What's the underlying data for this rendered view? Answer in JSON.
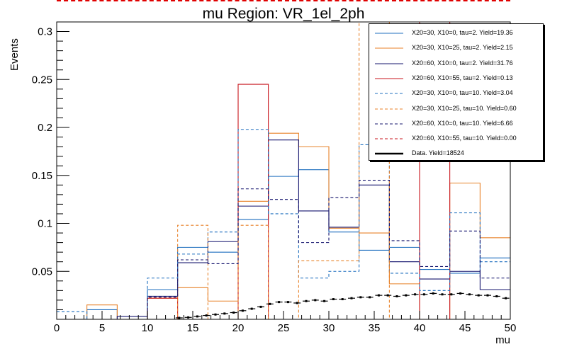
{
  "chart_data": {
    "type": "histogram",
    "title": "mu Region: VR_1el_2ph",
    "xlabel": "mu",
    "ylabel": "Events",
    "xlim": [
      0,
      50
    ],
    "ylim": [
      0,
      0.31
    ],
    "x_ticks": [
      0,
      5,
      10,
      15,
      20,
      25,
      30,
      35,
      40,
      45,
      50
    ],
    "y_ticks": [
      0.05,
      0.1,
      0.15,
      0.2,
      0.25,
      0.3
    ],
    "bin_edges": [
      0,
      3.33,
      6.67,
      10,
      13.33,
      16.67,
      20,
      23.33,
      26.67,
      30,
      33.33,
      36.67,
      40,
      43.33,
      46.67,
      50
    ],
    "legend_position": "top-right",
    "series": [
      {
        "name": "X20=30, X10=0, tau=2. Yield=19.36",
        "color": "#1f6fbf",
        "style": "solid",
        "values": [
          0.0,
          0.01,
          0.0,
          0.031,
          0.075,
          0.07,
          0.104,
          0.149,
          0.156,
          0.091,
          0.072,
          0.075,
          0.052,
          0.048,
          0.064
        ]
      },
      {
        "name": "X20=30, X10=25, tau=2. Yield=2.15",
        "color": "#e8822a",
        "style": "solid",
        "values": [
          0.0,
          0.015,
          0.0,
          0.022,
          0.033,
          0.019,
          0.123,
          0.194,
          0.18,
          0.095,
          0.09,
          0.037,
          0.0,
          0.142,
          0.085
        ]
      },
      {
        "name": "X20=60, X10=0, tau=2. Yield=31.76",
        "color": "#14146e",
        "style": "solid",
        "values": [
          0.0,
          0.0,
          0.003,
          0.024,
          0.059,
          0.081,
          0.118,
          0.187,
          0.113,
          0.096,
          0.14,
          0.06,
          0.042,
          0.05,
          0.031
        ]
      },
      {
        "name": "X20=60, X10=55, tau=2. Yield=0.13",
        "color": "#c8161d",
        "style": "solid",
        "values": [
          0.0,
          0.0,
          0.0,
          0.022,
          0.0,
          0.0,
          0.245,
          0.0,
          0.0,
          0.0,
          0.0,
          0.0,
          0.31,
          0.0,
          0.0
        ]
      },
      {
        "name": "X20=30, X10=0, tau=10. Yield=3.04",
        "color": "#1f6fbf",
        "style": "dashed",
        "values": [
          0.008,
          0.0,
          0.0,
          0.043,
          0.068,
          0.091,
          0.198,
          0.11,
          0.043,
          0.05,
          0.182,
          0.048,
          0.03,
          0.111,
          0.06
        ]
      },
      {
        "name": "X20=30, X10=25, tau=10. Yield=0.60",
        "color": "#e8822a",
        "style": "dashed",
        "values": [
          0.0,
          0.0,
          0.0,
          0.0,
          0.098,
          0.0,
          0.098,
          0.0,
          0.061,
          0.061,
          0.31,
          0.0,
          0.0,
          0.0,
          0.0
        ]
      },
      {
        "name": "X20=60, X10=0, tau=10. Yield=6.66",
        "color": "#14146e",
        "style": "dashed",
        "values": [
          0.0,
          0.0,
          0.0,
          0.023,
          0.062,
          0.058,
          0.136,
          0.125,
          0.08,
          0.127,
          0.145,
          0.082,
          0.055,
          0.092,
          0.043
        ]
      },
      {
        "name": "X20=60, X10=55, tau=10. Yield=0.00",
        "color": "#c8161d",
        "style": "dashed",
        "values": [
          0.0,
          0.0,
          0.0,
          0.0,
          0.0,
          0.0,
          0.0,
          0.0,
          0.0,
          0.0,
          0.0,
          0.0,
          0.0,
          0.0,
          0.0
        ]
      }
    ],
    "data_points": {
      "name": "Data. Yield=18524",
      "color": "#000000",
      "x": [
        13.5,
        14.5,
        15.5,
        16.5,
        17.5,
        18.5,
        19.5,
        20.5,
        21.5,
        22.5,
        23.5,
        24.5,
        25.5,
        26.5,
        27.5,
        28.5,
        29.5,
        30.5,
        31.5,
        32.5,
        33.5,
        34.5,
        35.5,
        36.5,
        37.5,
        38.5,
        39.5,
        40.5,
        41.5,
        42.5,
        43.5,
        44.5,
        45.5,
        46.5,
        47.5,
        48.5,
        49.5
      ],
      "y": [
        0.0015,
        0.002,
        0.003,
        0.004,
        0.005,
        0.006,
        0.007,
        0.009,
        0.011,
        0.013,
        0.016,
        0.018,
        0.018,
        0.017,
        0.019,
        0.02,
        0.019,
        0.021,
        0.021,
        0.022,
        0.023,
        0.023,
        0.025,
        0.025,
        0.024,
        0.025,
        0.026,
        0.026,
        0.027,
        0.026,
        0.026,
        0.027,
        0.026,
        0.025,
        0.025,
        0.024,
        0.022
      ]
    }
  }
}
